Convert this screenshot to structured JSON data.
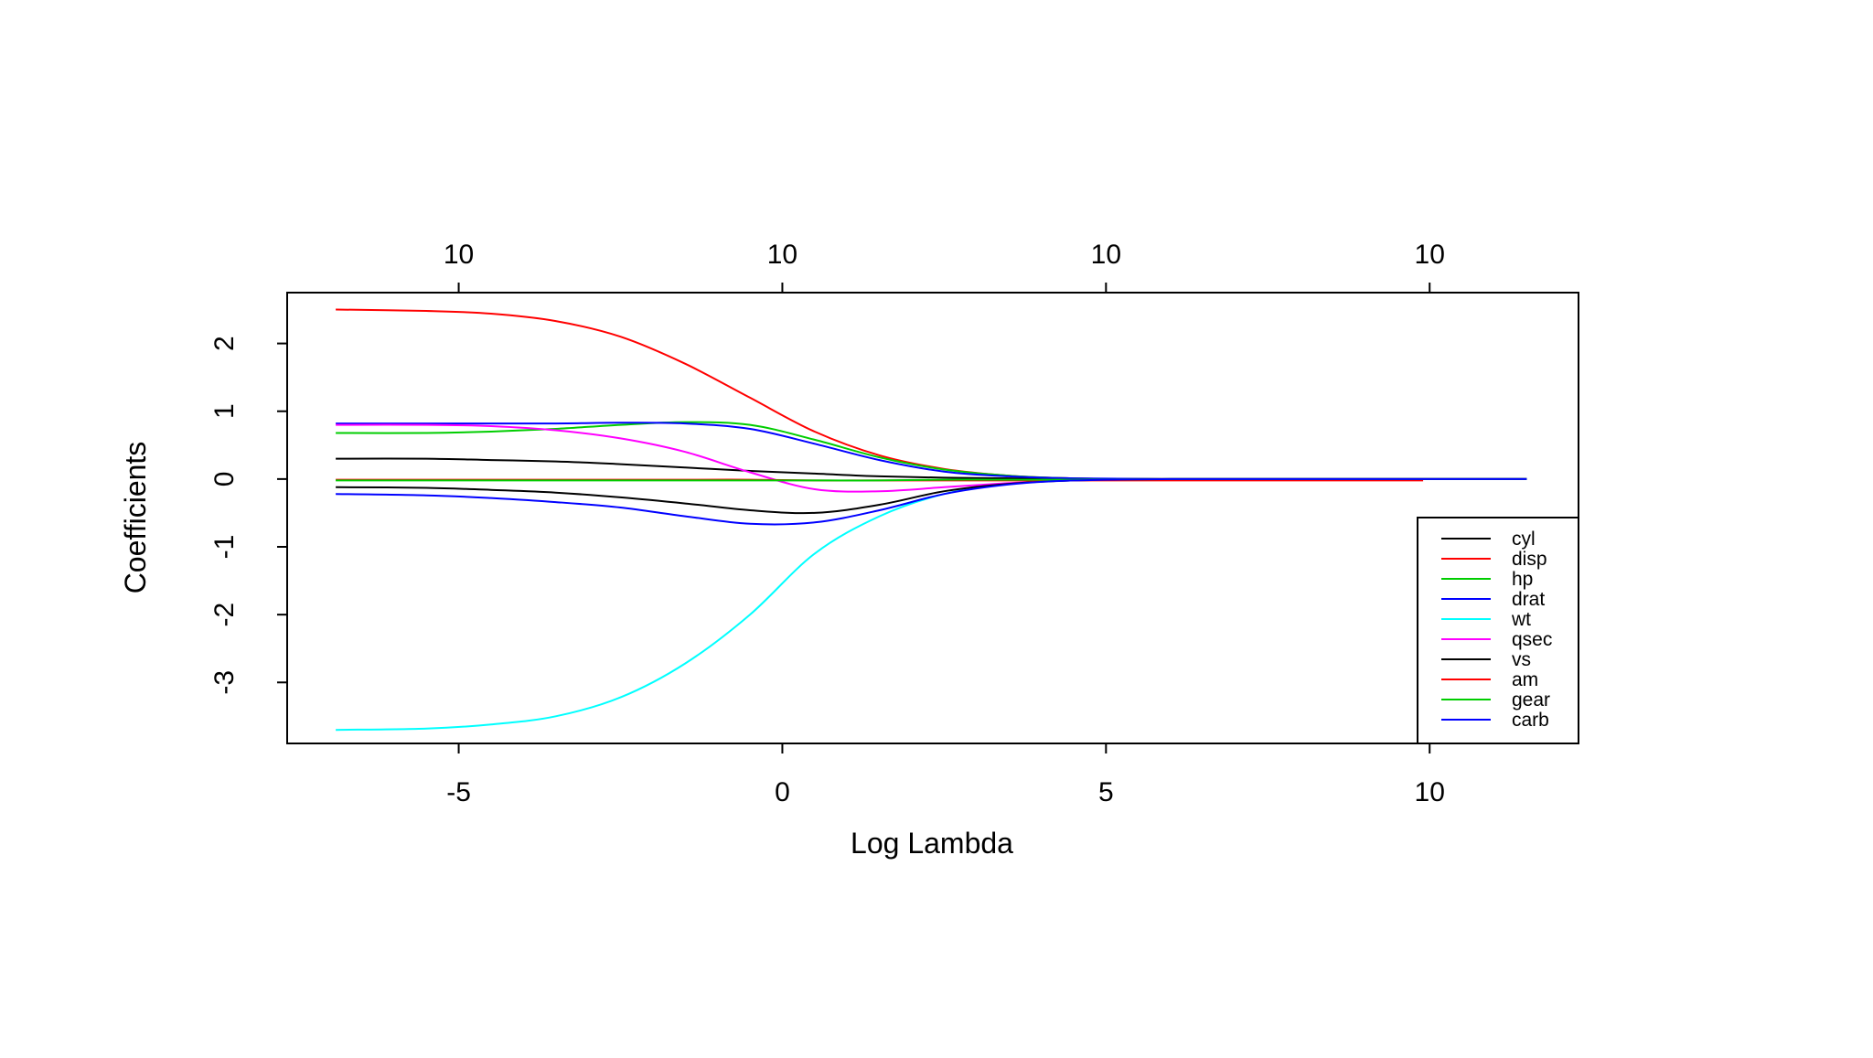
{
  "chart_data": {
    "type": "line",
    "title": "",
    "xlabel": "Log Lambda",
    "ylabel": "Coefficients",
    "xlim": [
      -7.65,
      12.3
    ],
    "ylim": [
      -3.9,
      2.75
    ],
    "x_ticks": [
      -5,
      0,
      5,
      10
    ],
    "y_ticks": [
      -3,
      -2,
      -1,
      0,
      1,
      2
    ],
    "top_axis": {
      "ticks": [
        -5,
        0,
        5,
        10
      ],
      "labels": [
        "10",
        "10",
        "10",
        "10"
      ]
    },
    "grid": false,
    "legend_position": "bottom-right",
    "x": [
      -6.9,
      -5.5,
      -4.5,
      -3.5,
      -2.5,
      -1.5,
      -0.5,
      0.5,
      1.5,
      2.5,
      3.5,
      4.5,
      6.0,
      8.0,
      9.9,
      11.5
    ],
    "series": [
      {
        "name": "cyl",
        "color": "#000000",
        "values": [
          0.3,
          0.3,
          0.28,
          0.26,
          0.22,
          0.17,
          0.12,
          0.08,
          0.04,
          0.02,
          0.01,
          0.0,
          0.0,
          0.0,
          0.0,
          0.0
        ]
      },
      {
        "name": "disp",
        "color": "#ff0000",
        "values": [
          2.5,
          2.48,
          2.44,
          2.33,
          2.1,
          1.7,
          1.2,
          0.7,
          0.35,
          0.15,
          0.05,
          0.01,
          0.0,
          0.0,
          0.0,
          0.0
        ]
      },
      {
        "name": "hp",
        "color": "#00cd00",
        "values": [
          0.68,
          0.68,
          0.7,
          0.74,
          0.8,
          0.84,
          0.8,
          0.58,
          0.32,
          0.14,
          0.05,
          0.01,
          0.0,
          0.0,
          0.0,
          0.0
        ]
      },
      {
        "name": "drat",
        "color": "#0000ff",
        "values": [
          0.82,
          0.82,
          0.82,
          0.82,
          0.83,
          0.82,
          0.74,
          0.52,
          0.28,
          0.11,
          0.04,
          0.01,
          0.0,
          0.0,
          0.0,
          0.0
        ]
      },
      {
        "name": "wt",
        "color": "#00ffff",
        "values": [
          -3.7,
          -3.68,
          -3.62,
          -3.5,
          -3.22,
          -2.72,
          -2.0,
          -1.1,
          -0.55,
          -0.22,
          -0.07,
          -0.02,
          0.0,
          0.0,
          0.0,
          0.0
        ]
      },
      {
        "name": "qsec",
        "color": "#ff00ff",
        "values": [
          0.8,
          0.8,
          0.78,
          0.72,
          0.6,
          0.4,
          0.1,
          -0.15,
          -0.18,
          -0.12,
          -0.06,
          -0.02,
          0.0,
          0.0,
          0.0,
          0.0
        ]
      },
      {
        "name": "vs",
        "color": "#000000",
        "values": [
          -0.12,
          -0.13,
          -0.16,
          -0.2,
          -0.27,
          -0.36,
          -0.46,
          -0.5,
          -0.38,
          -0.18,
          -0.07,
          -0.02,
          0.0,
          0.0,
          0.0,
          0.0
        ]
      },
      {
        "name": "am",
        "color": "#ff0000",
        "values": [
          -0.01,
          -0.01,
          -0.01,
          -0.01,
          -0.01,
          -0.01,
          -0.01,
          -0.02,
          -0.02,
          -0.02,
          -0.02,
          -0.02,
          -0.02,
          -0.02,
          -0.02,
          null
        ]
      },
      {
        "name": "gear",
        "color": "#00cd00",
        "values": [
          -0.02,
          -0.02,
          -0.02,
          -0.02,
          -0.02,
          -0.02,
          -0.02,
          -0.02,
          -0.02,
          -0.01,
          -0.01,
          -0.01,
          0.0,
          0.0,
          0.0,
          0.0
        ]
      },
      {
        "name": "carb",
        "color": "#0000ff",
        "values": [
          -0.22,
          -0.24,
          -0.28,
          -0.34,
          -0.42,
          -0.55,
          -0.66,
          -0.64,
          -0.46,
          -0.22,
          -0.08,
          -0.02,
          0.0,
          0.0,
          0.0,
          0.0
        ]
      }
    ]
  }
}
